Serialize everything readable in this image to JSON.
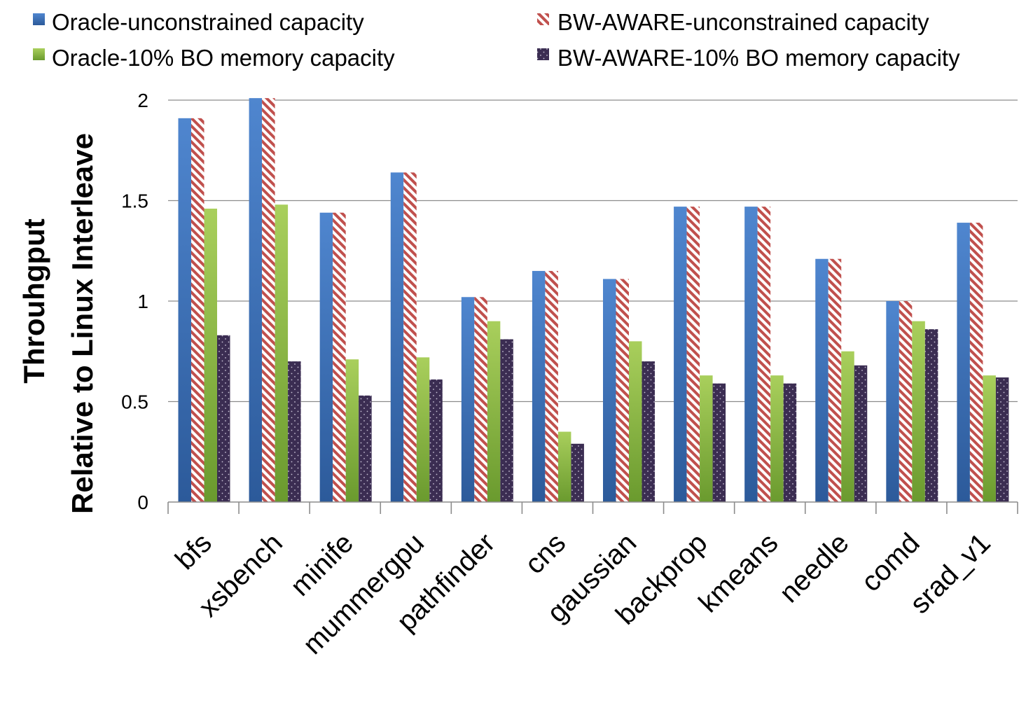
{
  "chart_data": {
    "type": "bar",
    "title": "",
    "xlabel": "",
    "ylabel_lines": [
      "Throuhgput",
      "Relative to Linux Interleave"
    ],
    "categories": [
      "bfs",
      "xsbench",
      "minife",
      "mummergpu",
      "pathfinder",
      "cns",
      "gaussian",
      "backprop",
      "kmeans",
      "needle",
      "comd",
      "srad_v1"
    ],
    "ylim": [
      0,
      2
    ],
    "yticks": [
      0,
      0.5,
      1,
      1.5,
      2
    ],
    "ytick_labels": [
      "0",
      "0.5",
      "1",
      "1.5",
      "2"
    ],
    "grid": true,
    "legend_position": "top",
    "series": [
      {
        "name": "Oracle-unconstrained capacity",
        "color": "#4a7ebb",
        "pattern": "gradient",
        "values": [
          1.91,
          2.01,
          1.44,
          1.64,
          1.02,
          1.15,
          1.11,
          1.47,
          1.47,
          1.21,
          1.0,
          1.39
        ]
      },
      {
        "name": "BW-AWARE-unconstrained capacity",
        "color": "#c0504d",
        "pattern": "diagonal-stripes",
        "values": [
          1.91,
          2.01,
          1.44,
          1.64,
          1.02,
          1.15,
          1.11,
          1.47,
          1.47,
          1.21,
          1.0,
          1.39
        ]
      },
      {
        "name": "Oracle-10% BO memory capacity",
        "color": "#9bbb59",
        "pattern": "gradient",
        "values": [
          1.46,
          1.48,
          0.71,
          0.72,
          0.9,
          0.35,
          0.8,
          0.63,
          0.63,
          0.75,
          0.9,
          0.63
        ]
      },
      {
        "name": "BW-AWARE-10% BO memory capacity",
        "color": "#3b2d52",
        "pattern": "dots",
        "values": [
          0.83,
          0.7,
          0.53,
          0.61,
          0.81,
          0.29,
          0.7,
          0.59,
          0.59,
          0.68,
          0.86,
          0.62
        ]
      }
    ]
  }
}
